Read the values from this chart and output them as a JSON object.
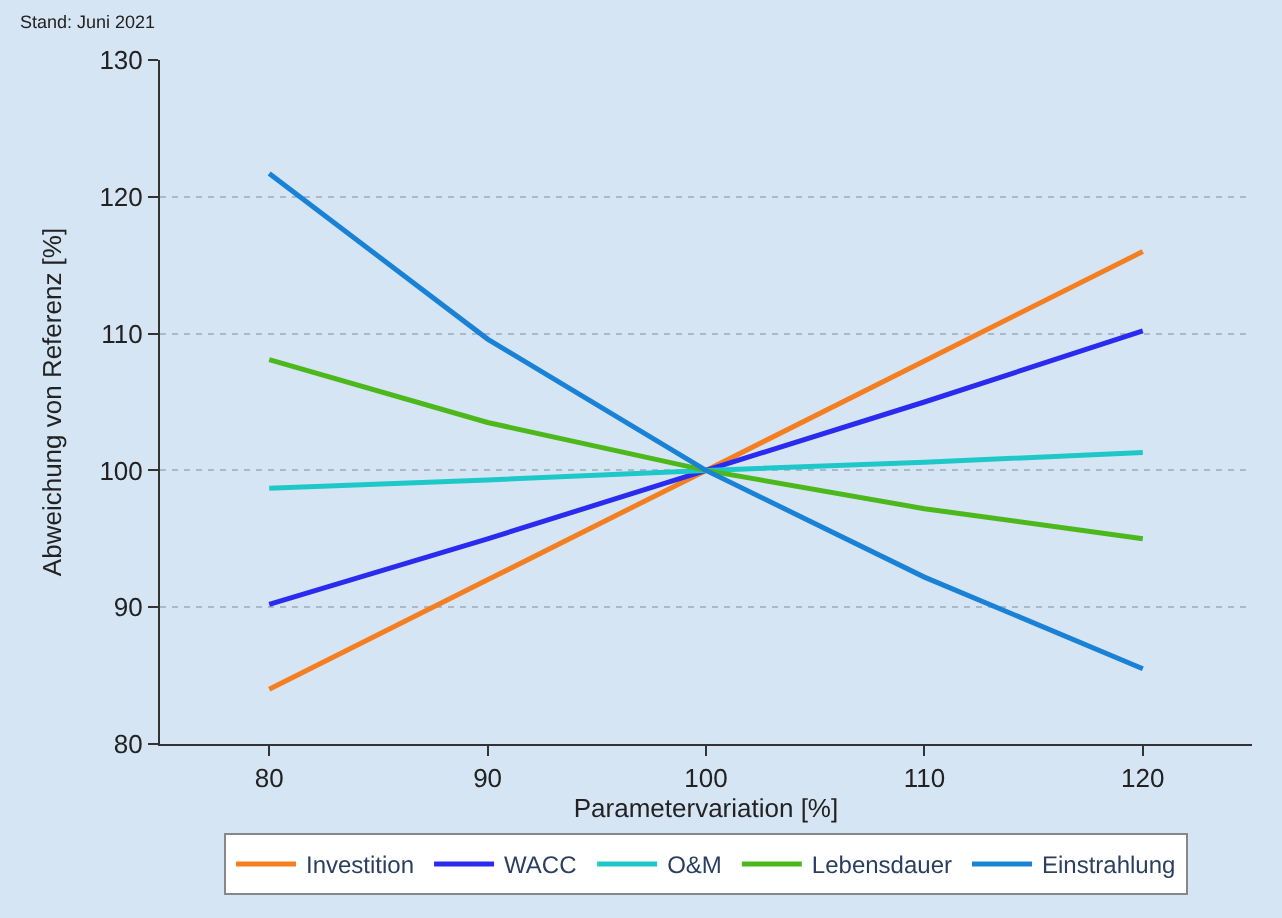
{
  "chart_data": {
    "type": "line",
    "xlabel": "Parametervariation [%]",
    "ylabel": "Abweichung von Referenz [%]",
    "annotations": [
      "Stand: Juni 2021"
    ],
    "x": [
      80,
      90,
      100,
      110,
      120
    ],
    "series": [
      {
        "name": "Investition",
        "color": "#f57f20",
        "values": [
          84,
          92,
          100,
          108,
          116
        ]
      },
      {
        "name": "WACC",
        "color": "#2b2bef",
        "values": [
          90.2,
          95,
          100,
          105,
          110.2
        ]
      },
      {
        "name": "O&M",
        "color": "#1fc8c8",
        "values": [
          98.7,
          99.3,
          100,
          100.6,
          101.3
        ]
      },
      {
        "name": "Lebensdauer",
        "color": "#4cb81c",
        "values": [
          108.1,
          103.5,
          100,
          97.2,
          95
        ]
      },
      {
        "name": "Einstrahlung",
        "color": "#1a82d6",
        "values": [
          121.7,
          109.6,
          100,
          92.2,
          85.5
        ]
      }
    ],
    "xlim": [
      75,
      125
    ],
    "xticks": [
      80,
      90,
      100,
      110,
      120
    ],
    "ylim": [
      80,
      130
    ],
    "yticks": [
      80,
      90,
      100,
      110,
      120,
      130
    ],
    "grid": "y",
    "legend": "bottom",
    "line_style": "solid",
    "marker": "none"
  }
}
